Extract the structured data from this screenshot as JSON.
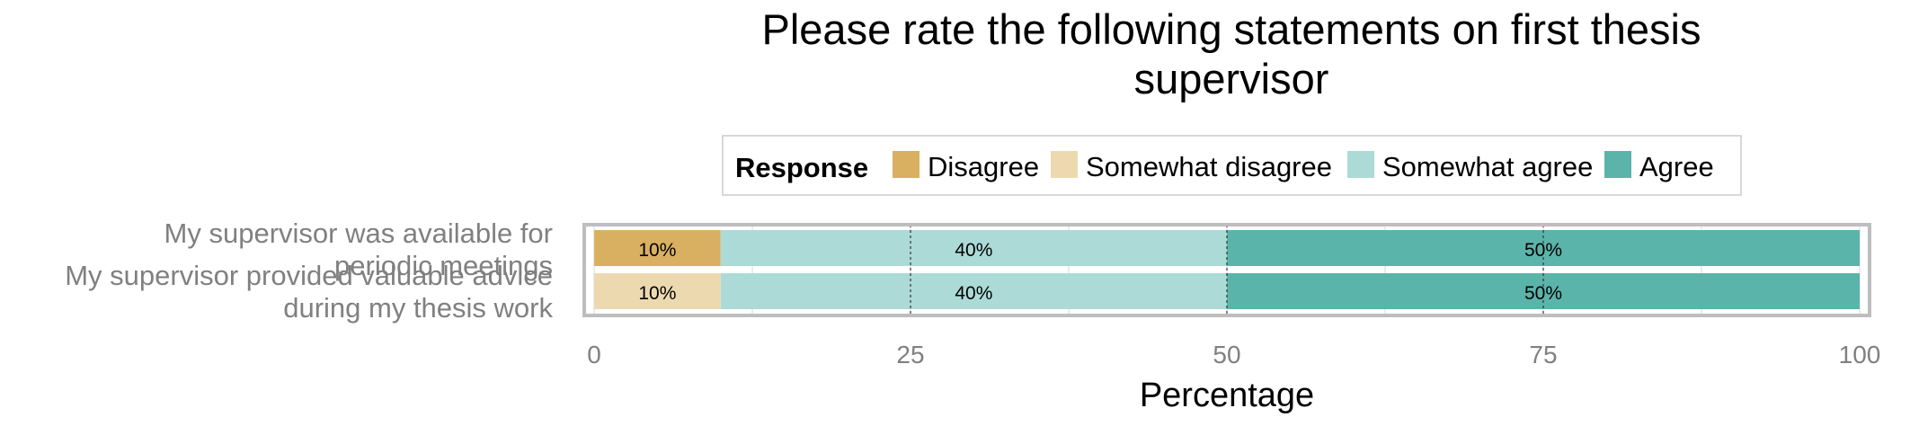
{
  "chart_data": {
    "type": "bar",
    "orientation": "horizontal",
    "stacked": true,
    "title": "Please rate the following statements on first thesis supervisor",
    "title_lines": [
      "Please rate the following statements on first thesis",
      "supervisor"
    ],
    "xlabel": "Percentage",
    "ylabel": "",
    "xlim": [
      0,
      100
    ],
    "xticks": [
      0,
      25,
      50,
      75,
      100
    ],
    "grid": true,
    "legend": {
      "title": "Response",
      "position": "top"
    },
    "categories": [
      "My supervisor was available for periodic meetings",
      "My supervisor provided valuable advice during my thesis work"
    ],
    "category_lines": [
      [
        "My supervisor was available for",
        "periodic meetings"
      ],
      [
        "My supervisor provided valuable advice",
        "during my thesis work"
      ]
    ],
    "series": [
      {
        "name": "Disagree",
        "color": "#d9b062",
        "values": [
          10,
          0
        ]
      },
      {
        "name": "Somewhat disagree",
        "color": "#ecd9b0",
        "values": [
          0,
          10
        ]
      },
      {
        "name": "Somewhat agree",
        "color": "#acdbd7",
        "values": [
          40,
          40
        ]
      },
      {
        "name": "Agree",
        "color": "#5bb4aa",
        "values": [
          50,
          50
        ]
      }
    ],
    "segment_labels": [
      [
        {
          "series": 0,
          "text": "10%"
        },
        {
          "series": 2,
          "text": "40%"
        },
        {
          "series": 3,
          "text": "50%"
        }
      ],
      [
        {
          "series": 1,
          "text": "10%"
        },
        {
          "series": 2,
          "text": "40%"
        },
        {
          "series": 3,
          "text": "50%"
        }
      ]
    ]
  }
}
